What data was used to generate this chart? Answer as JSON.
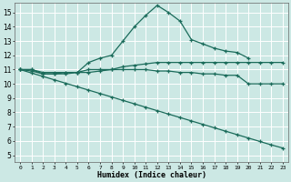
{
  "title": "",
  "xlabel": "Humidex (Indice chaleur)",
  "bg_color": "#cce8e4",
  "grid_color": "#ffffff",
  "line_color": "#1a6b5a",
  "xlim": [
    -0.5,
    23.5
  ],
  "ylim": [
    4.5,
    15.7
  ],
  "yticks": [
    5,
    6,
    7,
    8,
    9,
    10,
    11,
    12,
    13,
    14,
    15
  ],
  "xticks": [
    0,
    1,
    2,
    3,
    4,
    5,
    6,
    7,
    8,
    9,
    10,
    11,
    12,
    13,
    14,
    15,
    16,
    17,
    18,
    19,
    20,
    21,
    22,
    23
  ],
  "series": [
    {
      "x": [
        0,
        1,
        2,
        3,
        4,
        5,
        6,
        7,
        8,
        9,
        10,
        11,
        12,
        13,
        14,
        15,
        16,
        17,
        18,
        19,
        20,
        21,
        22,
        23
      ],
      "y": [
        11,
        11,
        10.8,
        10.8,
        10.8,
        10.8,
        11,
        11,
        11,
        11.2,
        11.3,
        11.4,
        11.5,
        11.5,
        11.5,
        11.5,
        11.5,
        11.5,
        11.5,
        11.5,
        11.5,
        11.5,
        11.5,
        11.5
      ]
    },
    {
      "x": [
        0,
        1,
        2,
        3,
        4,
        5,
        6,
        7,
        8,
        9,
        10,
        11,
        12,
        13,
        14,
        15,
        16,
        17,
        18,
        19,
        20,
        21,
        22,
        23
      ],
      "y": [
        11,
        10.9,
        10.7,
        10.7,
        10.7,
        10.8,
        10.8,
        10.9,
        11,
        11,
        11,
        11,
        10.9,
        10.9,
        10.8,
        10.8,
        10.7,
        10.7,
        10.6,
        10.6,
        10,
        10,
        10,
        10
      ]
    },
    {
      "x": [
        0,
        1,
        2,
        3,
        4,
        5,
        6,
        7,
        8,
        9,
        10,
        11,
        12,
        13,
        14,
        15,
        16,
        17,
        18,
        19,
        20
      ],
      "y": [
        11,
        11,
        10.7,
        10.7,
        10.8,
        10.8,
        11.5,
        11.8,
        12,
        13,
        14,
        14.8,
        15.5,
        15,
        14.4,
        13.1,
        12.8,
        12.5,
        12.3,
        12.2,
        11.8
      ]
    },
    {
      "x": [
        0,
        1,
        2,
        3,
        4,
        5,
        6,
        7,
        8,
        9,
        10,
        11,
        12,
        13,
        14,
        15,
        16,
        17,
        18,
        19,
        20,
        21,
        22,
        23
      ],
      "y": [
        11,
        10.76,
        10.52,
        10.28,
        10.04,
        9.8,
        9.56,
        9.32,
        9.08,
        8.84,
        8.6,
        8.36,
        8.12,
        7.88,
        7.64,
        7.4,
        7.16,
        6.92,
        6.68,
        6.44,
        6.2,
        5.96,
        5.72,
        5.5
      ]
    }
  ]
}
